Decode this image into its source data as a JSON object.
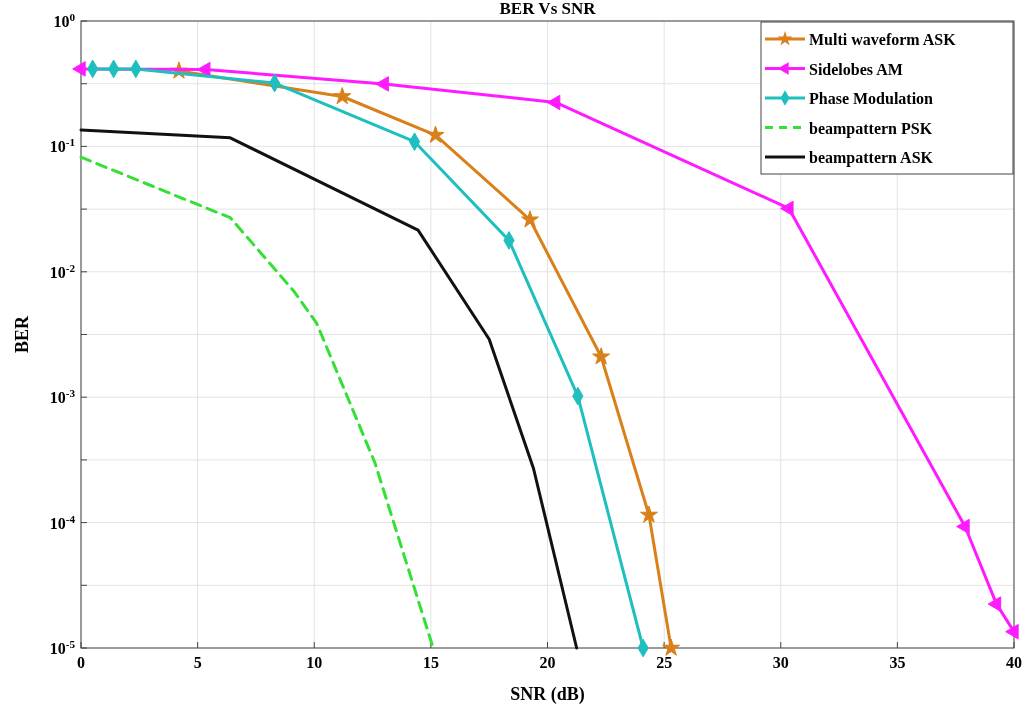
{
  "chart_data": {
    "type": "line",
    "title": "BER Vs SNR",
    "xlabel": "SNR (dB)",
    "ylabel": "BER",
    "log": "y",
    "grid": true,
    "legend": "top right",
    "xlim": [
      0,
      40
    ],
    "xticks": [
      0,
      5,
      10,
      15,
      20,
      25,
      30,
      35,
      40
    ],
    "ylim": [
      1e-05,
      1
    ],
    "yticks": [
      {
        "value": 1e-05,
        "label": "10$^{-5}$"
      },
      {
        "value": 3.1623e-05,
        "label": null
      },
      {
        "value": 0.0001,
        "label": "10$^{-4}$"
      },
      {
        "value": 0.00031623,
        "label": null
      },
      {
        "value": 0.001,
        "label": "10$^{-3}$"
      },
      {
        "value": 0.0031623,
        "label": null
      },
      {
        "value": 0.01,
        "label": "10$^{-2}$"
      },
      {
        "value": 0.031623,
        "label": null
      },
      {
        "value": 0.1,
        "label": "10$^{-1}$"
      },
      {
        "value": 0.31623,
        "label": null
      },
      {
        "value": 1,
        "label": "10$^{0}$"
      }
    ],
    "series": [
      {
        "name": "Multi waveform ASK",
        "color": "#d9801a",
        "marker": "star",
        "x": [
          4.2,
          11.2,
          15.2,
          19.25,
          22.3,
          24.35,
          25.3
        ],
        "values": [
          0.4,
          0.25,
          0.123,
          0.026,
          0.0021,
          0.000115,
          1e-05
        ]
      },
      {
        "name": "Sidelobes AM",
        "color": "#ff1aff",
        "marker": "triangle",
        "x": [
          0,
          5.35,
          13,
          20.35,
          30.35,
          37.9,
          39.25,
          40
        ],
        "values": [
          0.415,
          0.41,
          0.315,
          0.224,
          0.032,
          9.3e-05,
          2.24e-05,
          1.35e-05
        ]
      },
      {
        "name": "Phase Modulation",
        "color": "#1fbfbf",
        "marker": "diamond",
        "x": [
          0.5,
          1.4,
          2.35,
          8.3,
          14.3,
          18.35,
          21.3,
          24.1
        ],
        "values": [
          0.415,
          0.415,
          0.415,
          0.32,
          0.109,
          0.0178,
          0.00102,
          1e-05
        ]
      },
      {
        "name": "beampattern PSK",
        "color": "#33e033",
        "marker": "none",
        "line_style": "dashed",
        "x": [
          0,
          6.4,
          9.1,
          10.1,
          12.6,
          15.1
        ],
        "values": [
          0.082,
          0.027,
          0.0071,
          0.0039,
          0.0003,
          1e-05
        ]
      },
      {
        "name": "beampattern ASK",
        "color": "#111111",
        "marker": "none",
        "x": [
          0,
          6.4,
          14.45,
          17.5,
          19.4,
          21.25
        ],
        "values": [
          0.135,
          0.117,
          0.0215,
          0.0029,
          0.00027,
          1e-05
        ]
      }
    ]
  }
}
